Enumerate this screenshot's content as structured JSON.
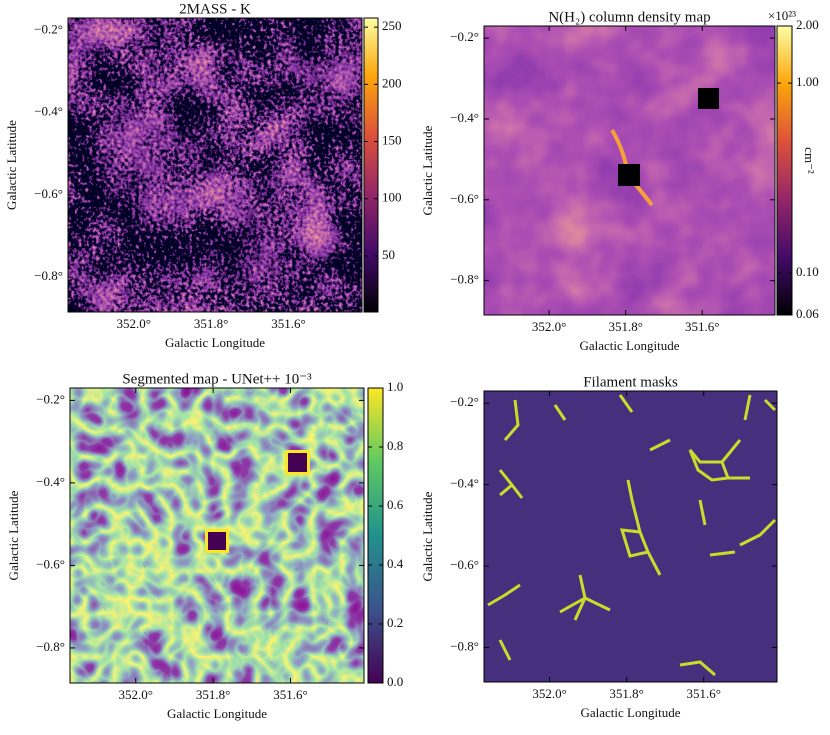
{
  "chart_data": [
    {
      "type": "heatmap",
      "title": "2MASS - K",
      "xlabel": "Galactic Longitude",
      "ylabel": "Galactic Latitude",
      "xlim": [
        352.17,
        351.41
      ],
      "ylim": [
        -0.885,
        -0.17
      ],
      "xticks": [
        {
          "value": 352.0,
          "label": "352.0°"
        },
        {
          "value": 351.8,
          "label": "351.8°"
        },
        {
          "value": 351.6,
          "label": "351.6°"
        }
      ],
      "yticks": [
        {
          "value": -0.2,
          "label": "−0.2°"
        },
        {
          "value": -0.4,
          "label": "−0.4°"
        },
        {
          "value": -0.6,
          "label": "−0.6°"
        },
        {
          "value": -0.8,
          "label": "−0.8°"
        }
      ],
      "colormap": "inferno",
      "colorbar": {
        "lim": [
          1,
          258
        ],
        "ticks": [
          50,
          100,
          150,
          200,
          250
        ]
      }
    },
    {
      "type": "heatmap",
      "title": "N(H₂) column density map",
      "xlabel": "Galactic Longitude",
      "ylabel": "Galactic Latitude",
      "xlim": [
        352.17,
        351.41
      ],
      "ylim": [
        -0.885,
        -0.17
      ],
      "xticks": [
        {
          "value": 352.0,
          "label": "352.0°"
        },
        {
          "value": 351.8,
          "label": "351.8°"
        },
        {
          "value": 351.6,
          "label": "351.6°"
        }
      ],
      "yticks": [
        {
          "value": -0.2,
          "label": "−0.2°"
        },
        {
          "value": -0.4,
          "label": "−0.4°"
        },
        {
          "value": -0.6,
          "label": "−0.6°"
        },
        {
          "value": -0.8,
          "label": "−0.8°"
        }
      ],
      "colormap": "inferno",
      "colorbar": {
        "lim": [
          0.06,
          2.0
        ],
        "scale": "log",
        "label": "cm⁻²",
        "offset": "×10²³",
        "ticks": [
          {
            "value": 0.06,
            "label": "0.06"
          },
          {
            "value": 0.1,
            "label": "0.10"
          },
          {
            "value": 1.0,
            "label": "1.00"
          },
          {
            "value": 2.0,
            "label": "2.00"
          }
        ]
      }
    },
    {
      "type": "heatmap",
      "title": "Segmented map - UNet++ 10⁻³",
      "xlabel": "Galactic Longitude",
      "ylabel": "Galactic Latitude",
      "xlim": [
        352.17,
        351.41
      ],
      "ylim": [
        -0.885,
        -0.17
      ],
      "xticks": [
        {
          "value": 352.0,
          "label": "352.0°"
        },
        {
          "value": 351.8,
          "label": "351.8°"
        },
        {
          "value": 351.6,
          "label": "351.6°"
        }
      ],
      "yticks": [
        {
          "value": -0.2,
          "label": "−0.2°"
        },
        {
          "value": -0.4,
          "label": "−0.4°"
        },
        {
          "value": -0.6,
          "label": "−0.6°"
        },
        {
          "value": -0.8,
          "label": "−0.8°"
        }
      ],
      "colormap": "viridis",
      "colorbar": {
        "lim": [
          0,
          1
        ],
        "ticks": [
          {
            "value": 0,
            "label": "0.0"
          },
          {
            "value": 0.2,
            "label": "0.2"
          },
          {
            "value": 0.4,
            "label": "0.4"
          },
          {
            "value": 0.6,
            "label": "0.6"
          },
          {
            "value": 0.8,
            "label": "0.8"
          },
          {
            "value": 1,
            "label": "1.0"
          }
        ]
      }
    },
    {
      "type": "heatmap",
      "title": "Filament masks",
      "xlabel": "Galactic Longitude",
      "ylabel": "Galactic Latitude",
      "xlim": [
        352.17,
        351.41
      ],
      "ylim": [
        -0.885,
        -0.17
      ],
      "xticks": [
        {
          "value": 352.0,
          "label": "352.0°"
        },
        {
          "value": 351.8,
          "label": "351.8°"
        },
        {
          "value": 351.6,
          "label": "351.6°"
        }
      ],
      "yticks": [
        {
          "value": -0.2,
          "label": "−0.2°"
        },
        {
          "value": -0.4,
          "label": "−0.4°"
        },
        {
          "value": -0.6,
          "label": "−0.6°"
        },
        {
          "value": -0.8,
          "label": "−0.8°"
        }
      ],
      "colormap": "viridis"
    }
  ]
}
